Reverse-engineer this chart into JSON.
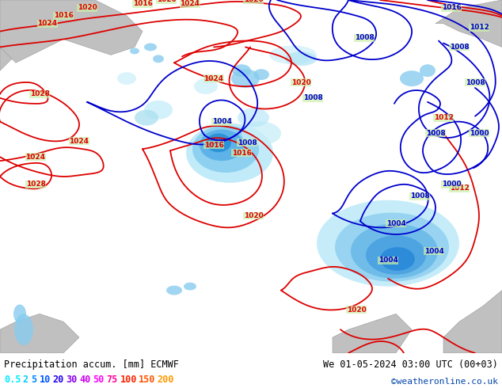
{
  "title_left": "Precipitation accum. [mm] ECMWF",
  "title_right": "We 01-05-2024 03:00 UTC (00+03)",
  "credit": "©weatheronline.co.uk",
  "legend_values": [
    "0.5",
    "2",
    "5",
    "10",
    "20",
    "30",
    "40",
    "50",
    "75",
    "100",
    "150",
    "200"
  ],
  "legend_colors": [
    "#00eeff",
    "#00ccff",
    "#0088ff",
    "#0055ff",
    "#2200ee",
    "#8800ee",
    "#cc00ee",
    "#ff00ff",
    "#ff0099",
    "#ff2200",
    "#ff5500",
    "#ff9900"
  ],
  "land_green": "#cceeaa",
  "land_gray": "#c0c0c0",
  "sea_color": "#aaddcc",
  "precip_colors": [
    "#b8eaf8",
    "#80cef0",
    "#50b0e0",
    "#2090d0",
    "#0070c0"
  ],
  "isobar_red": "#dd0000",
  "isobar_blue": "#0000cc",
  "border_color": "#888888",
  "fig_w": 6.34,
  "fig_h": 4.9,
  "dpi": 100
}
